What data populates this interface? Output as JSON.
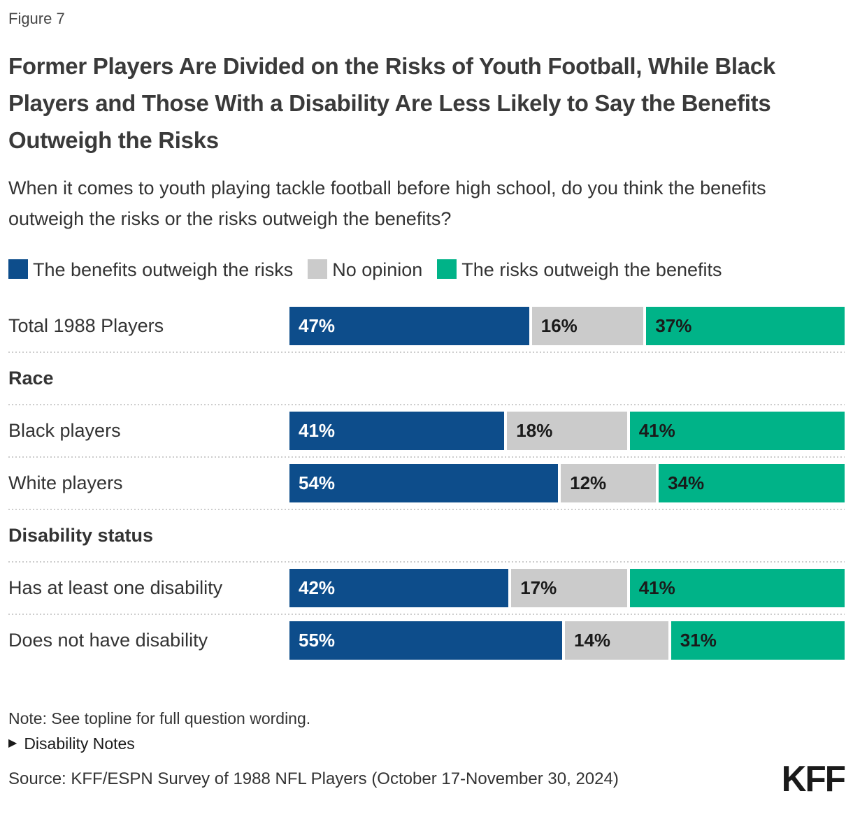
{
  "figure_label": "Figure 7",
  "title": "Former Players Are Divided on the Risks of Youth Football, While Black Players and Those With a Disability Are Less Likely to Say the Benefits Outweigh the Risks",
  "subtitle": "When it comes to youth playing tackle football before high school, do you think the benefits outweigh the risks or the risks outweigh the benefits?",
  "legend": {
    "items": [
      {
        "key": "benefits",
        "label": "The benefits outweigh the risks",
        "color": "#0d4d8b"
      },
      {
        "key": "no-opinion",
        "label": "No opinion",
        "color": "#cbcbcb"
      },
      {
        "key": "risks",
        "label": "The risks outweigh the benefits",
        "color": "#00b388"
      }
    ]
  },
  "chart_data": {
    "type": "bar",
    "orientation": "horizontal",
    "stacked": true,
    "unit": "%",
    "x_range": [
      0,
      100
    ],
    "grid": false,
    "legend_position": "top",
    "series": [
      "The benefits outweigh the risks",
      "No opinion",
      "The risks outweigh the benefits"
    ],
    "series_keys": [
      "benefits",
      "no-opinion",
      "risks"
    ],
    "colors": [
      "#0d4d8b",
      "#cbcbcb",
      "#00b388"
    ],
    "label_colors": [
      "#ffffff",
      "#1a1a1a",
      "#1a1a1a"
    ],
    "rows": [
      {
        "type": "bar",
        "label": "Total 1988 Players",
        "values": [
          47,
          16,
          37
        ]
      },
      {
        "type": "header",
        "label": "Race"
      },
      {
        "type": "bar",
        "label": "Black players",
        "values": [
          41,
          18,
          41
        ]
      },
      {
        "type": "bar",
        "label": "White players",
        "values": [
          54,
          12,
          34
        ]
      },
      {
        "type": "header",
        "label": "Disability status"
      },
      {
        "type": "bar",
        "label": "Has at least one disability",
        "values": [
          42,
          17,
          41
        ]
      },
      {
        "type": "bar",
        "label": "Does not have disability",
        "values": [
          55,
          14,
          31
        ]
      }
    ]
  },
  "footer": {
    "note": "Note: See topline for full question wording.",
    "disability_notes_label": "Disability Notes",
    "triangle_icon": "▶",
    "source": "Source: KFF/ESPN Survey of 1988 NFL Players (October 17-November 30, 2024)",
    "logo_text": "KFF"
  }
}
